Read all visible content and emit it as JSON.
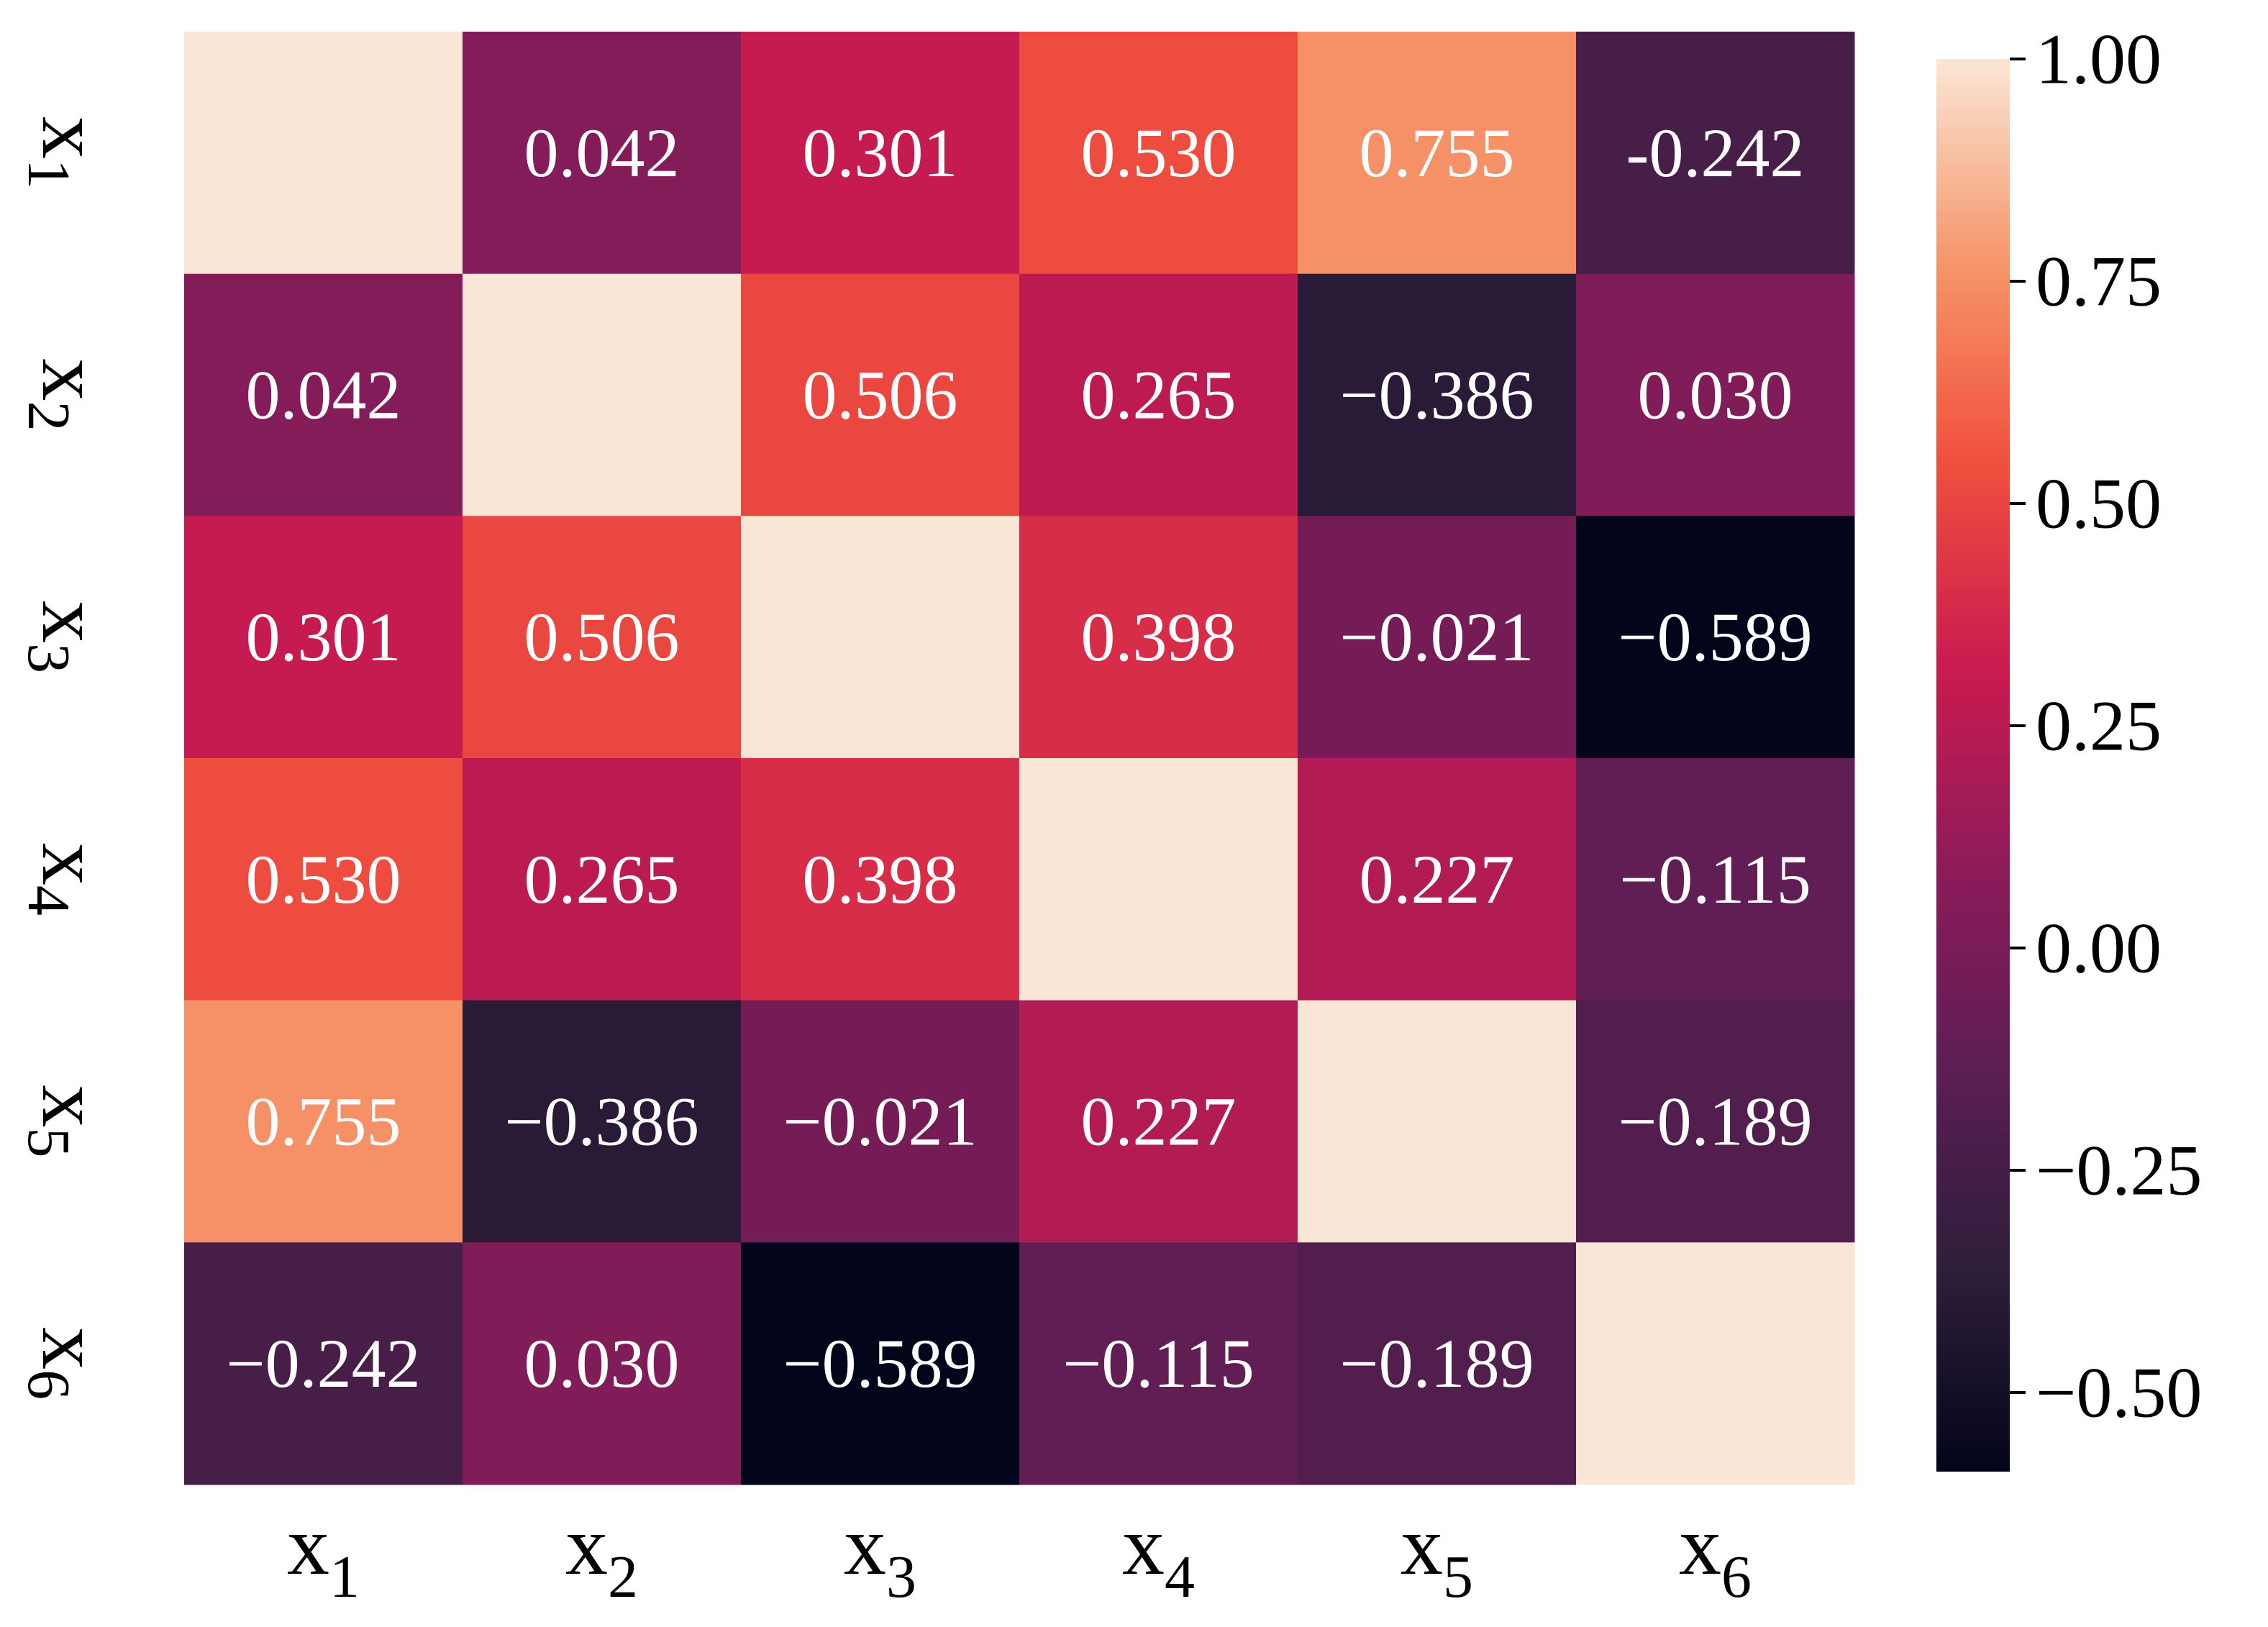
{
  "chart_data": {
    "type": "heatmap",
    "title": "",
    "xlabel": "",
    "ylabel": "",
    "variables": [
      {
        "base": "x",
        "sub": "1"
      },
      {
        "base": "x",
        "sub": "2"
      },
      {
        "base": "x",
        "sub": "3"
      },
      {
        "base": "x",
        "sub": "4"
      },
      {
        "base": "x",
        "sub": "5"
      },
      {
        "base": "x",
        "sub": "6"
      }
    ],
    "values": [
      [
        1.0,
        0.042,
        0.301,
        0.53,
        0.755,
        -0.242
      ],
      [
        0.042,
        1.0,
        0.506,
        0.265,
        -0.386,
        0.03
      ],
      [
        0.301,
        0.506,
        1.0,
        0.398,
        -0.021,
        -0.589
      ],
      [
        0.53,
        0.265,
        0.398,
        1.0,
        0.227,
        -0.115
      ],
      [
        0.755,
        -0.386,
        -0.021,
        0.227,
        1.0,
        -0.189
      ],
      [
        -0.242,
        0.03,
        -0.589,
        -0.115,
        -0.189,
        1.0
      ]
    ],
    "cell_labels": [
      [
        "",
        "0.042",
        "0.301",
        "0.530",
        "0.755",
        "-0.242"
      ],
      [
        "0.042",
        "",
        "0.506",
        "0.265",
        "−0.386",
        "0.030"
      ],
      [
        "0.301",
        "0.506",
        "",
        "0.398",
        "−0.021",
        "−0.589"
      ],
      [
        "0.530",
        "0.265",
        "0.398",
        "",
        "0.227",
        "−0.115"
      ],
      [
        "0.755",
        "−0.386",
        "−0.021",
        "0.227",
        "",
        "−0.189"
      ],
      [
        "−0.242",
        "0.030",
        "−0.589",
        "−0.115",
        "−0.189",
        ""
      ]
    ],
    "colorbar": {
      "vmin": -0.589,
      "vmax": 1.0,
      "ticks": [
        1.0,
        0.75,
        0.5,
        0.25,
        0.0,
        -0.25,
        -0.5
      ],
      "tick_labels": [
        "1.00",
        "0.75",
        "0.50",
        "0.25",
        "0.00",
        "−0.25",
        "−0.50"
      ],
      "colormap": "rocket",
      "stops": [
        "#03051a",
        "#2e1e3b",
        "#5c1e54",
        "#8e1b5a",
        "#cb1b4f",
        "#f0503d",
        "#f6966a",
        "#fae6d6"
      ]
    },
    "label_color": "#ffffff",
    "text_color": "#000000"
  }
}
